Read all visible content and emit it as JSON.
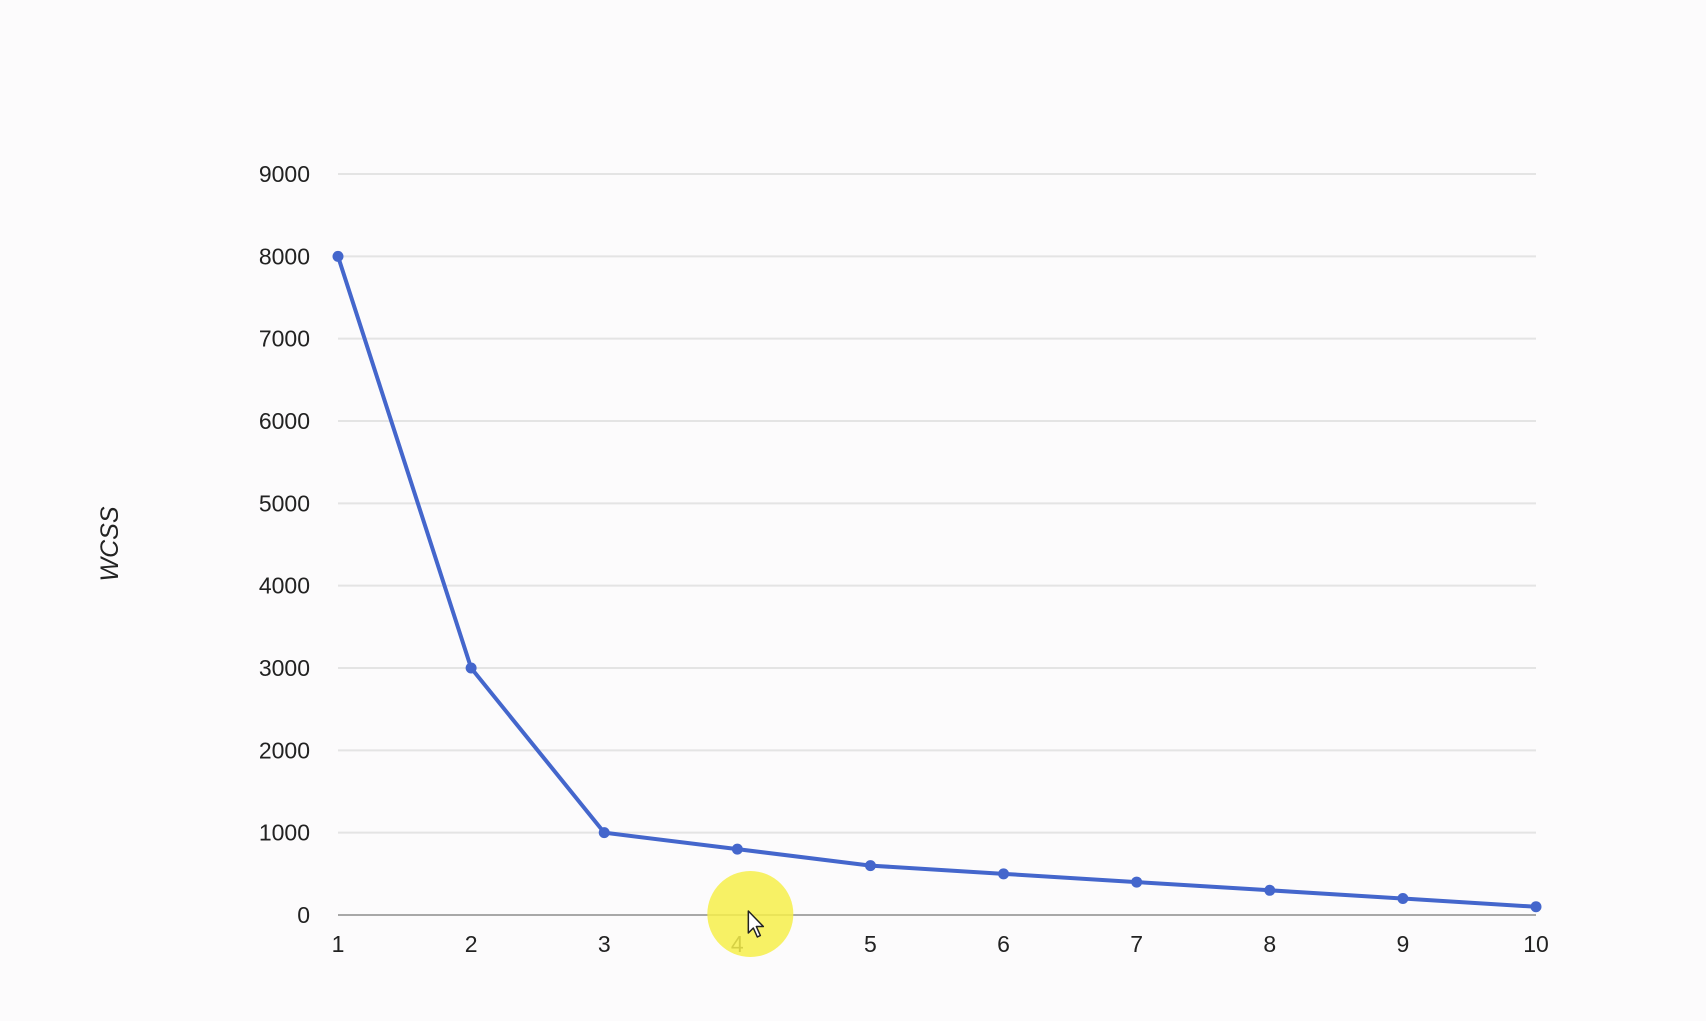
{
  "chart_data": {
    "type": "line",
    "title": "",
    "xlabel": "",
    "ylabel": "WCSS",
    "x": [
      1,
      2,
      3,
      4,
      5,
      6,
      7,
      8,
      9,
      10
    ],
    "series": [
      {
        "values": [
          8000,
          3000,
          1000,
          800,
          600,
          500,
          400,
          300,
          200,
          100
        ],
        "color": "#4466cc"
      }
    ],
    "xlim": [
      1,
      10
    ],
    "ylim": [
      0,
      9000
    ],
    "yticks": [
      0,
      1000,
      2000,
      3000,
      4000,
      5000,
      6000,
      7000,
      8000,
      9000
    ],
    "xticks": [
      1,
      2,
      3,
      4,
      5,
      6,
      7,
      8,
      9,
      10
    ],
    "grid": true,
    "legend": "none"
  },
  "cursor": {
    "icon": "mouse-pointer-icon",
    "highlight_color": "#f6ee4a",
    "over_x_tick": 4
  }
}
